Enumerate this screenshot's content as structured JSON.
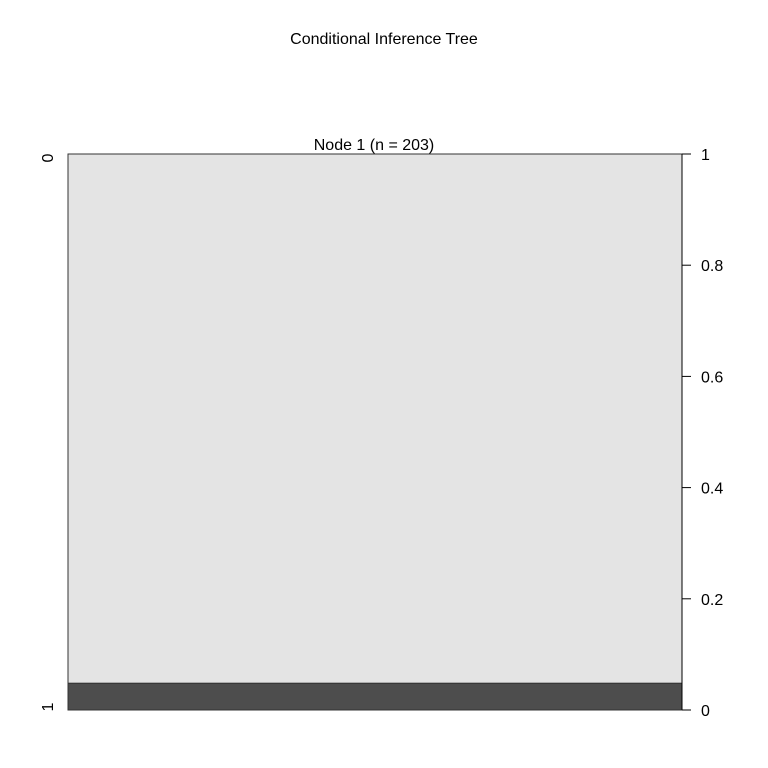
{
  "chart_data": {
    "type": "bar",
    "title": "Conditional Inference Tree",
    "node_label": "Node 1 (n = 203)",
    "n": 203,
    "categories": [
      "0",
      "1"
    ],
    "values": [
      0.952,
      0.048
    ],
    "orientation": "stacked-proportion",
    "ylim": [
      0,
      1
    ],
    "yticks": [
      "0",
      "0.2",
      "0.4",
      "0.6",
      "0.8",
      "1"
    ],
    "colors": {
      "class_0": "#e4e4e4",
      "class_1": "#4d4d4d",
      "border": "#333333"
    }
  }
}
